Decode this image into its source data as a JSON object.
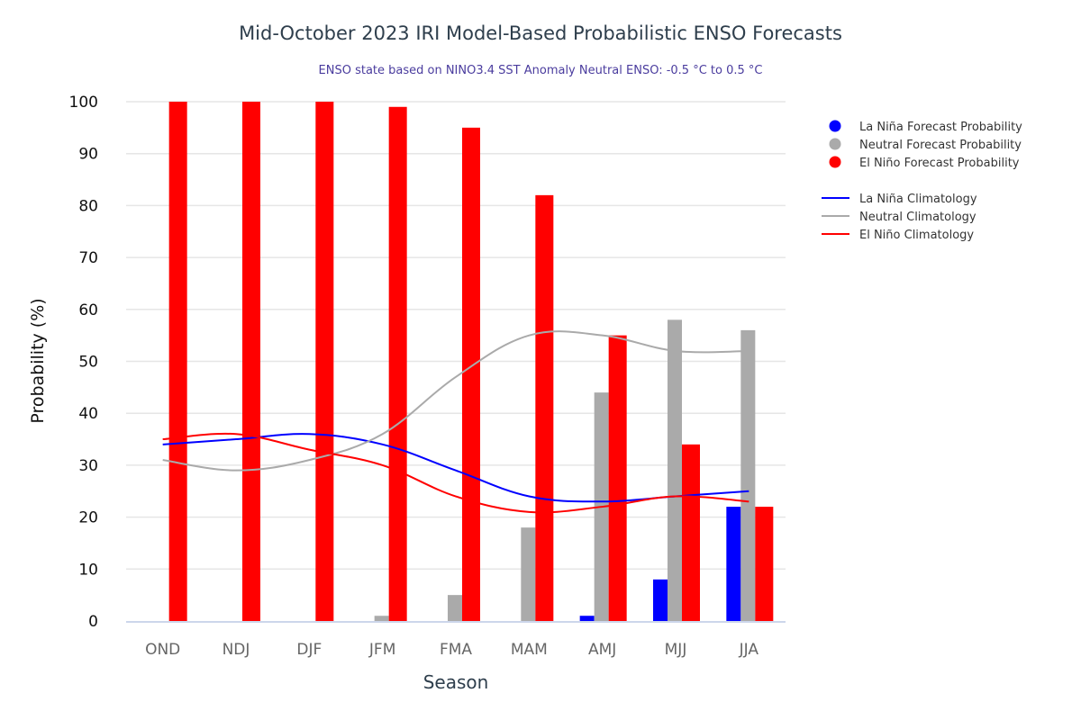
{
  "chart_data": {
    "type": "bar",
    "title": "Mid-October 2023 IRI Model-Based Probabilistic ENSO Forecasts",
    "subtitle": "ENSO state based on NINO3.4 SST Anomaly Neutral ENSO: -0.5 °C to 0.5 °C",
    "xlabel": "Season",
    "ylabel": "Probability (%)",
    "ylim": [
      0,
      100
    ],
    "yticks": [
      0,
      10,
      20,
      30,
      40,
      50,
      60,
      70,
      80,
      90,
      100
    ],
    "grid": true,
    "legend_position": "right",
    "categories": [
      "OND",
      "NDJ",
      "DJF",
      "JFM",
      "FMA",
      "MAM",
      "AMJ",
      "MJJ",
      "JJA"
    ],
    "series": [
      {
        "name": "La Niña Forecast Probability",
        "kind": "bar",
        "color": "#0000ff",
        "values": [
          0,
          0,
          0,
          0,
          0,
          0,
          1,
          8,
          22
        ]
      },
      {
        "name": "Neutral Forecast Probability",
        "kind": "bar",
        "color": "#aaaaaa",
        "values": [
          0,
          0,
          0,
          1,
          5,
          18,
          44,
          58,
          56
        ]
      },
      {
        "name": "El Niño Forecast Probability",
        "kind": "bar",
        "color": "#ff0000",
        "values": [
          100,
          100,
          100,
          99,
          95,
          82,
          55,
          34,
          22
        ]
      },
      {
        "name": "La Niña Climatology",
        "kind": "line",
        "color": "#0000ff",
        "values": [
          34,
          35,
          36,
          34,
          29,
          24,
          23,
          24,
          25
        ]
      },
      {
        "name": "Neutral Climatology",
        "kind": "line",
        "color": "#aaaaaa",
        "values": [
          31,
          29,
          31,
          36,
          47,
          55,
          55,
          52,
          52
        ]
      },
      {
        "name": "El Niño Climatology",
        "kind": "line",
        "color": "#ff0000",
        "values": [
          35,
          36,
          33,
          30,
          24,
          21,
          22,
          24,
          23
        ]
      }
    ]
  }
}
